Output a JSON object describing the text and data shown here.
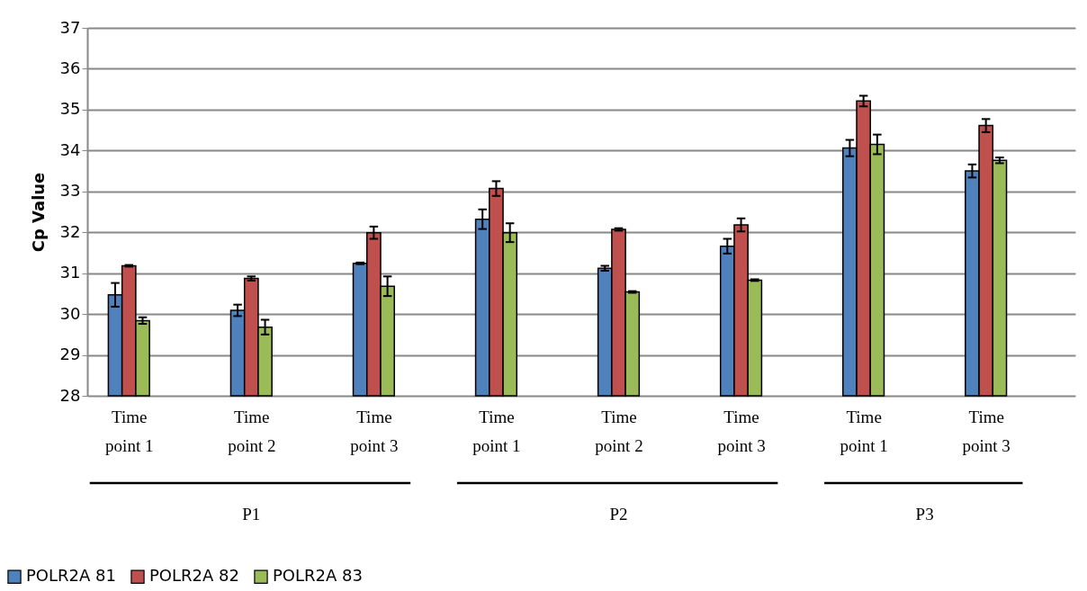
{
  "chart_data": {
    "type": "bar",
    "ylabel": "Cp Value",
    "categories": [
      "Time point 1",
      "Time point 2",
      "Time point 3",
      "Time point 1",
      "Time point 2",
      "Time point 3",
      "Time point 1",
      "Time point 3"
    ],
    "series": [
      {
        "name": "POLR2A 81",
        "color": "#4f81bd",
        "values": [
          30.47,
          30.09,
          31.24,
          32.32,
          31.12,
          31.66,
          34.06,
          33.5
        ],
        "errors": [
          0.29,
          0.14,
          0.02,
          0.24,
          0.06,
          0.18,
          0.2,
          0.16
        ]
      },
      {
        "name": "POLR2A 82",
        "color": "#c0504d",
        "values": [
          31.18,
          30.87,
          31.99,
          33.07,
          32.07,
          32.18,
          35.21,
          34.61
        ],
        "errors": [
          0.02,
          0.05,
          0.15,
          0.18,
          0.03,
          0.16,
          0.13,
          0.16
        ]
      },
      {
        "name": "POLR2A 83",
        "color": "#9bbb59",
        "values": [
          29.84,
          29.68,
          30.68,
          31.99,
          30.54,
          30.83,
          34.15,
          33.76
        ],
        "errors": [
          0.08,
          0.18,
          0.24,
          0.23,
          0.02,
          0.02,
          0.24,
          0.07
        ]
      }
    ],
    "annotations": [
      "P1",
      "P2",
      "P3"
    ],
    "ylim": [
      28,
      37
    ],
    "yticks": [
      28,
      29,
      30,
      31,
      32,
      33,
      34,
      35,
      36,
      37
    ],
    "grid": "y",
    "legend": "bottom left"
  }
}
